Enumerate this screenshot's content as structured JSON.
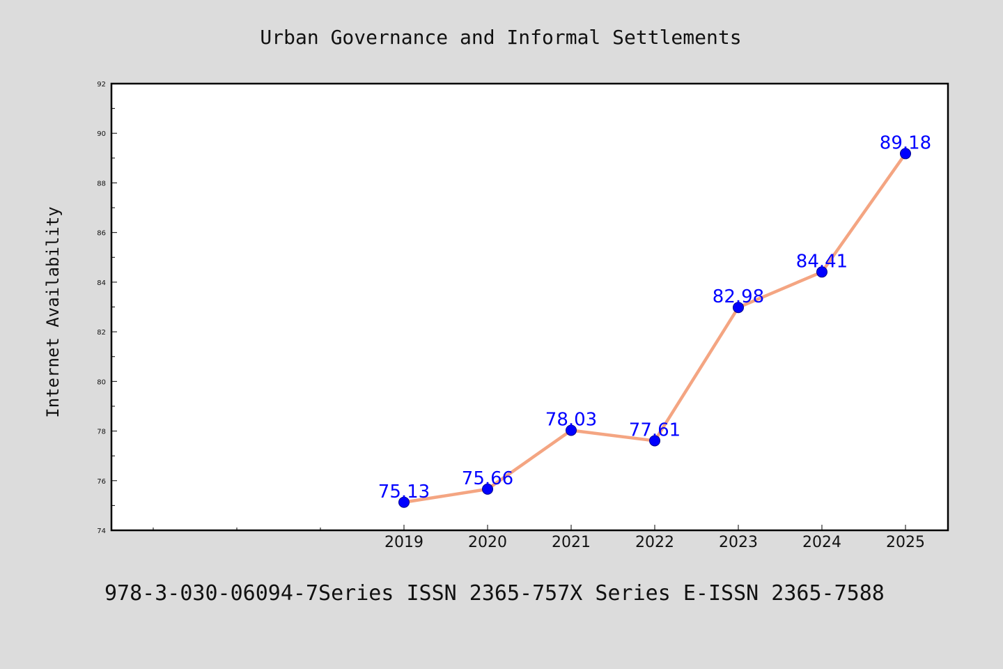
{
  "chart_data": {
    "type": "line",
    "title": "Urban Governance and Informal Settlements",
    "xlabel": "",
    "ylabel": "Internet Availability",
    "categories": [
      "2019",
      "2020",
      "2021",
      "2022",
      "2023",
      "2024",
      "2025"
    ],
    "series": [
      {
        "values": [
          75.13,
          75.66,
          78.03,
          77.61,
          82.98,
          84.41,
          89.18
        ],
        "labels": [
          "75.13",
          "75.66",
          "78.03",
          "77.61",
          "82.98",
          "84.41",
          "89.18"
        ]
      }
    ],
    "ylim": [
      74,
      92
    ],
    "yticks": [
      "74",
      "76",
      "78",
      "80",
      "82",
      "84",
      "86",
      "88",
      "90",
      "92"
    ],
    "grid": false,
    "colors": {
      "line": "#f4a582",
      "marker": "#0000ff",
      "label": "#0000ff",
      "background": "#dcdcdc",
      "plot_background": "#ffffff"
    }
  },
  "footer": {
    "text": "978-3-030-06094-7Series ISSN 2365-757X Series E-ISSN 2365-7588"
  }
}
